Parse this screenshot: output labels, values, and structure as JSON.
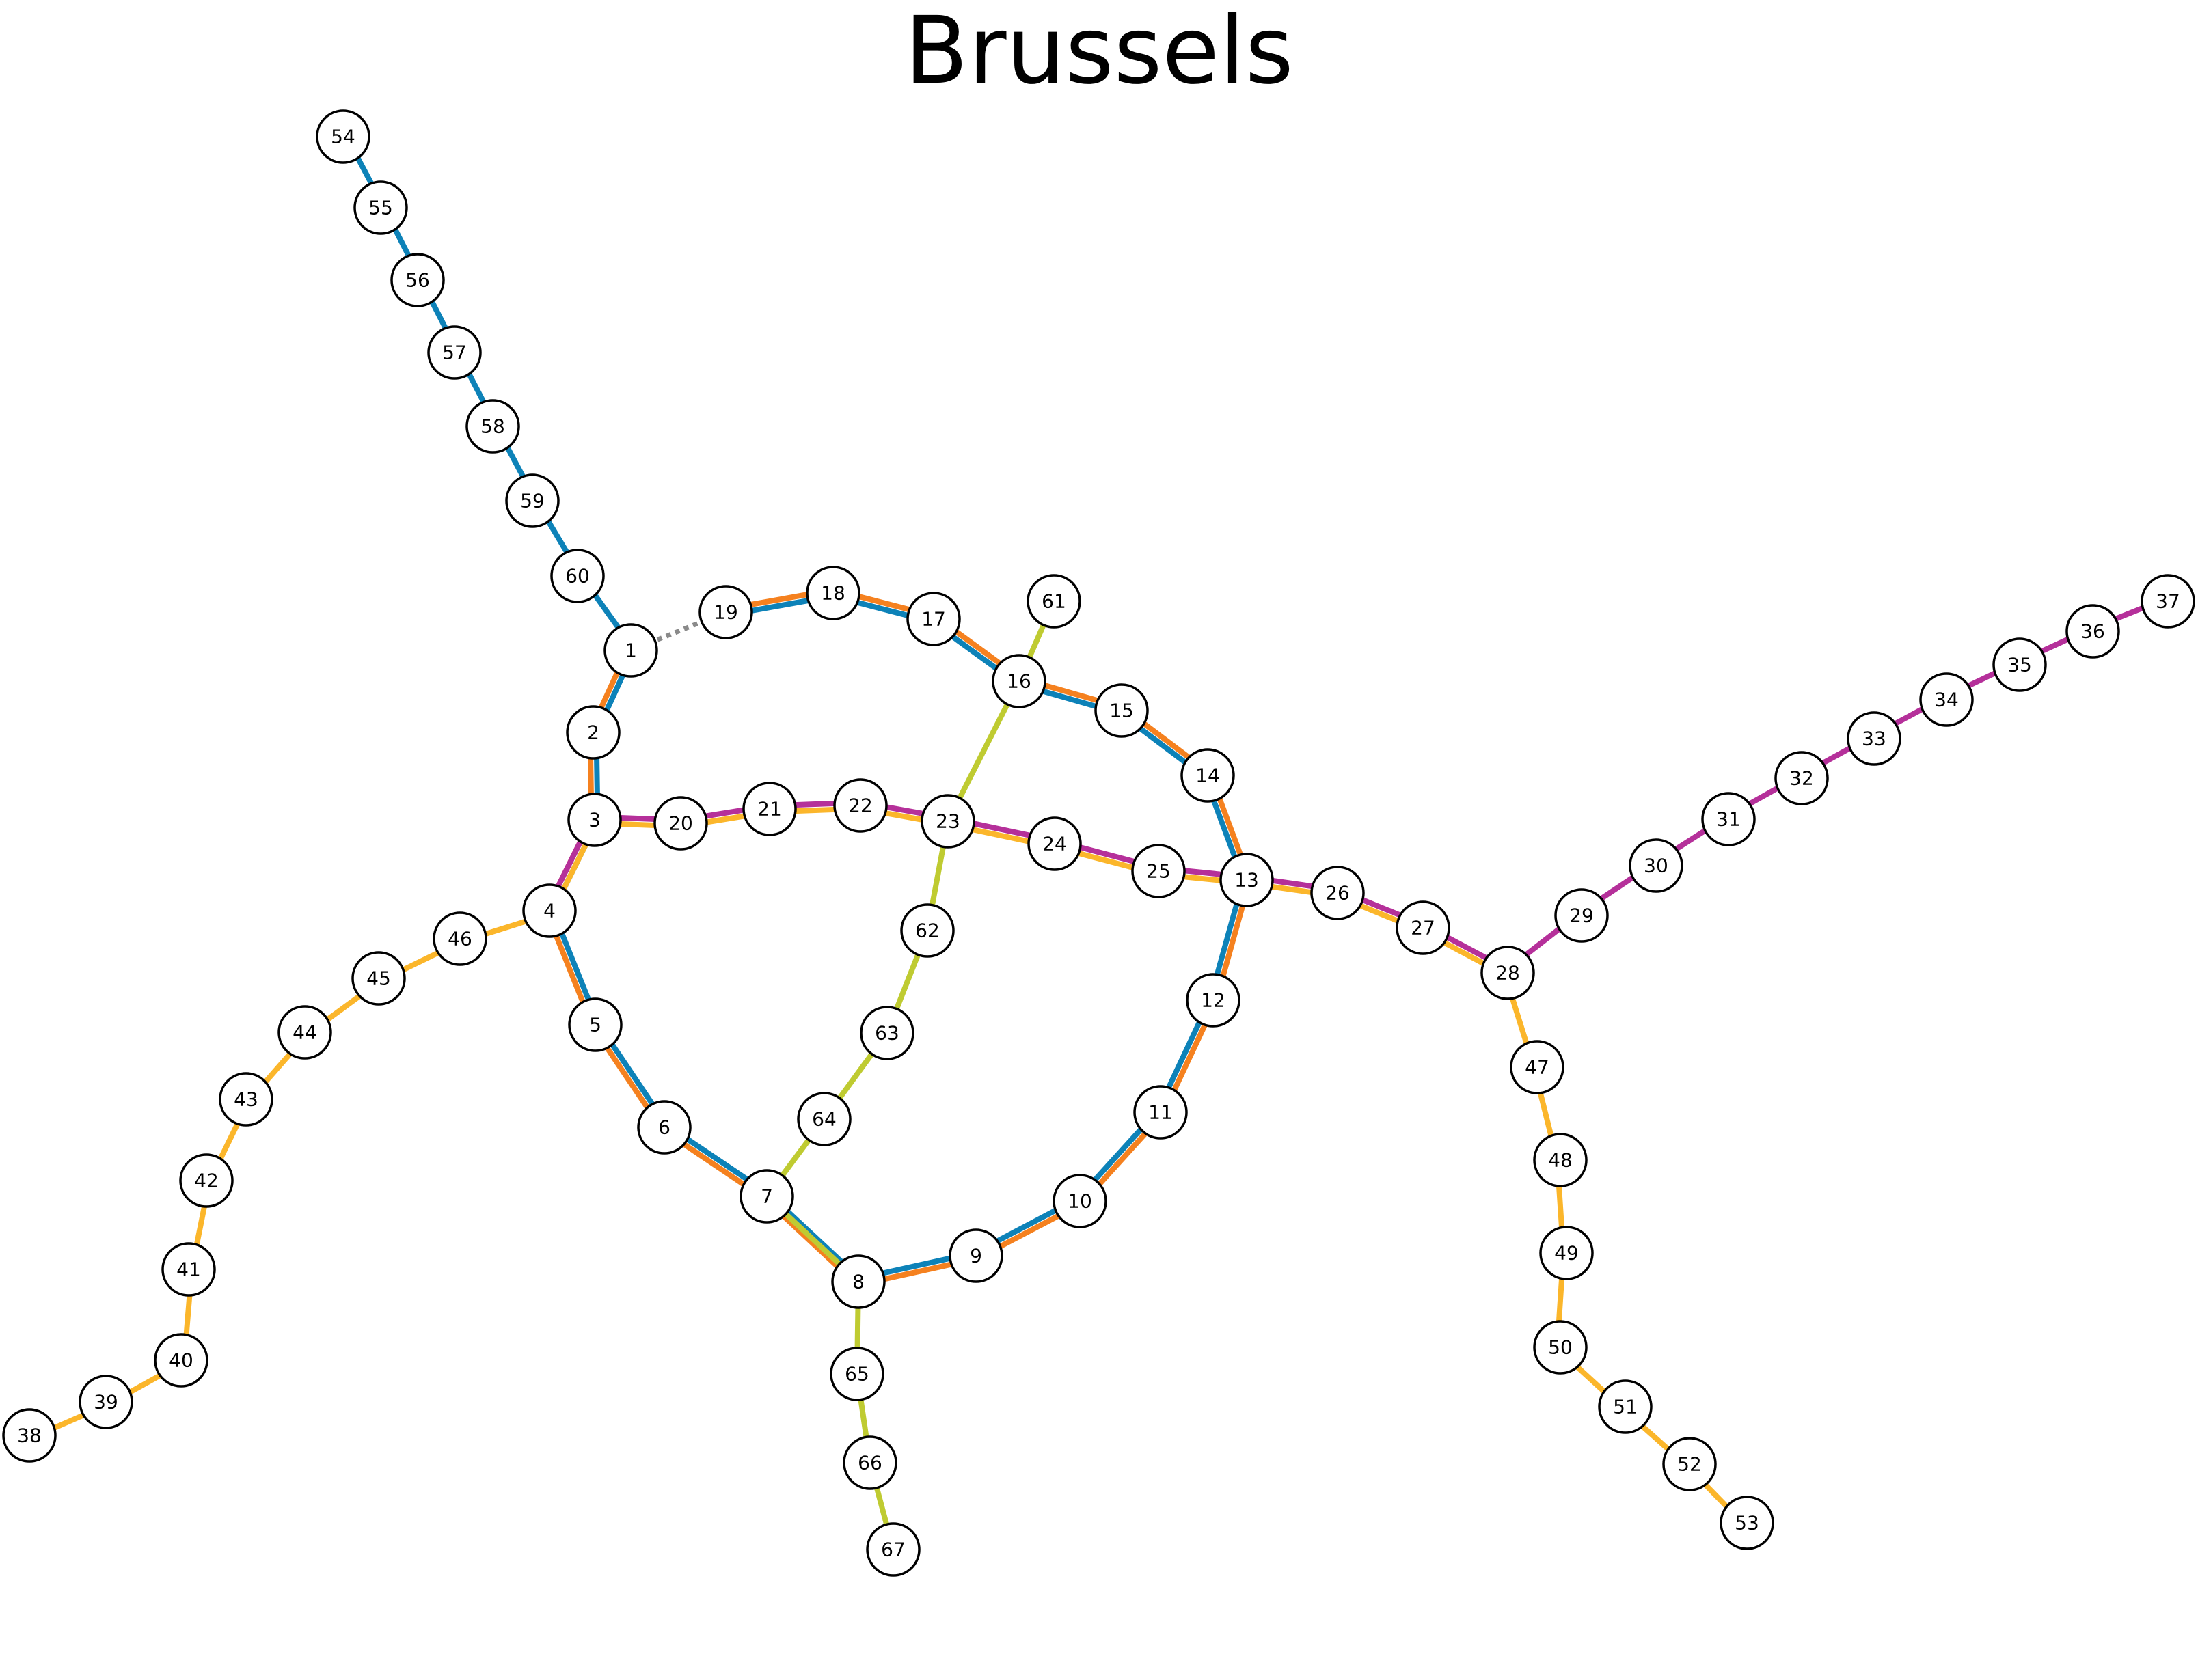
{
  "title": "Brussels",
  "colors": {
    "blue": "#0d82b8",
    "orange": "#f5811f",
    "yellow": "#fbb62b",
    "magenta": "#b5309a",
    "green": "#bfcb31",
    "gray": "#8a8a8a"
  },
  "stations": [
    {
      "id": "1",
      "label": "1"
    },
    {
      "id": "2",
      "label": "2"
    },
    {
      "id": "3",
      "label": "3"
    },
    {
      "id": "4",
      "label": "4"
    },
    {
      "id": "5",
      "label": "5"
    },
    {
      "id": "6",
      "label": "6"
    },
    {
      "id": "7",
      "label": "7"
    },
    {
      "id": "8",
      "label": "8"
    },
    {
      "id": "9",
      "label": "9"
    },
    {
      "id": "10",
      "label": "10"
    },
    {
      "id": "11",
      "label": "11"
    },
    {
      "id": "12",
      "label": "12"
    },
    {
      "id": "13",
      "label": "13"
    },
    {
      "id": "14",
      "label": "14"
    },
    {
      "id": "15",
      "label": "15"
    },
    {
      "id": "16",
      "label": "16"
    },
    {
      "id": "17",
      "label": "17"
    },
    {
      "id": "18",
      "label": "18"
    },
    {
      "id": "19",
      "label": "19"
    },
    {
      "id": "20",
      "label": "20"
    },
    {
      "id": "21",
      "label": "21"
    },
    {
      "id": "22",
      "label": "22"
    },
    {
      "id": "23",
      "label": "23"
    },
    {
      "id": "24",
      "label": "24"
    },
    {
      "id": "25",
      "label": "25"
    },
    {
      "id": "26",
      "label": "26"
    },
    {
      "id": "27",
      "label": "27"
    },
    {
      "id": "28",
      "label": "28"
    },
    {
      "id": "29",
      "label": "29"
    },
    {
      "id": "30",
      "label": "30"
    },
    {
      "id": "31",
      "label": "31"
    },
    {
      "id": "32",
      "label": "32"
    },
    {
      "id": "33",
      "label": "33"
    },
    {
      "id": "34",
      "label": "34"
    },
    {
      "id": "35",
      "label": "35"
    },
    {
      "id": "36",
      "label": "36"
    },
    {
      "id": "37",
      "label": "37"
    },
    {
      "id": "38",
      "label": "38"
    },
    {
      "id": "39",
      "label": "39"
    },
    {
      "id": "40",
      "label": "40"
    },
    {
      "id": "41",
      "label": "41"
    },
    {
      "id": "42",
      "label": "42"
    },
    {
      "id": "43",
      "label": "43"
    },
    {
      "id": "44",
      "label": "44"
    },
    {
      "id": "45",
      "label": "45"
    },
    {
      "id": "46",
      "label": "46"
    },
    {
      "id": "47",
      "label": "47"
    },
    {
      "id": "48",
      "label": "48"
    },
    {
      "id": "49",
      "label": "49"
    },
    {
      "id": "50",
      "label": "50"
    },
    {
      "id": "51",
      "label": "51"
    },
    {
      "id": "52",
      "label": "52"
    },
    {
      "id": "53",
      "label": "53"
    },
    {
      "id": "54",
      "label": "54"
    },
    {
      "id": "55",
      "label": "55"
    },
    {
      "id": "56",
      "label": "56"
    },
    {
      "id": "57",
      "label": "57"
    },
    {
      "id": "58",
      "label": "58"
    },
    {
      "id": "59",
      "label": "59"
    },
    {
      "id": "60",
      "label": "60"
    },
    {
      "id": "61",
      "label": "61"
    },
    {
      "id": "62",
      "label": "62"
    },
    {
      "id": "63",
      "label": "63"
    },
    {
      "id": "64",
      "label": "64"
    },
    {
      "id": "65",
      "label": "65"
    },
    {
      "id": "66",
      "label": "66"
    },
    {
      "id": "67",
      "label": "67"
    }
  ],
  "lines": [
    {
      "color": "blue",
      "stops": [
        "54",
        "55",
        "56",
        "57",
        "58",
        "59",
        "60",
        "1",
        "2",
        "3",
        "4",
        "5",
        "6",
        "7",
        "8",
        "9",
        "10",
        "11",
        "12",
        "13",
        "14",
        "15",
        "16",
        "17",
        "18",
        "19"
      ]
    },
    {
      "color": "orange",
      "stops": [
        "1",
        "2",
        "3",
        "4",
        "5",
        "6",
        "7",
        "8",
        "9",
        "10",
        "11",
        "12",
        "13",
        "14",
        "15",
        "16",
        "17",
        "18",
        "19"
      ]
    },
    {
      "color": "magenta",
      "stops": [
        "4",
        "3",
        "20",
        "21",
        "22",
        "23",
        "24",
        "25",
        "13",
        "26",
        "27",
        "28",
        "29",
        "30",
        "31",
        "32",
        "33",
        "34",
        "35",
        "36",
        "37"
      ]
    },
    {
      "color": "yellow",
      "stops": [
        "38",
        "39",
        "40",
        "41",
        "42",
        "43",
        "44",
        "45",
        "46",
        "4",
        "3",
        "20",
        "21",
        "22",
        "23",
        "24",
        "25",
        "13",
        "26",
        "27",
        "28",
        "47",
        "48",
        "49",
        "50",
        "51",
        "52",
        "53"
      ]
    },
    {
      "color": "green",
      "stops": [
        "61",
        "16",
        "23",
        "62",
        "63",
        "64",
        "7",
        "8",
        "65",
        "66",
        "67"
      ]
    }
  ],
  "connectors": [
    {
      "color": "gray",
      "from": "1",
      "to": "19",
      "style": "dotted"
    }
  ]
}
